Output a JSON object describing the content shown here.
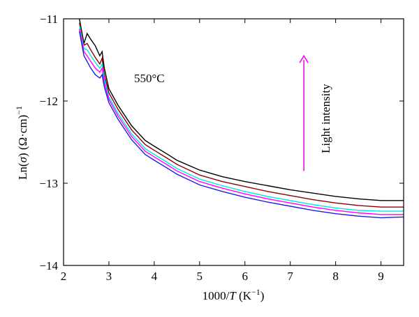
{
  "chart_data": {
    "type": "line",
    "xlabel_parts": {
      "pre": "1000/",
      "var": "T",
      "mid": " (K",
      "sup": "−1",
      "post": ")"
    },
    "ylabel_parts": {
      "pre": "Ln(",
      "var": "σ",
      "mid": ") (Ω·cm)",
      "sup": "−1"
    },
    "xlim": [
      2,
      9.5
    ],
    "ylim": [
      -14,
      -11
    ],
    "xticks": [
      2,
      3,
      4,
      5,
      6,
      7,
      8,
      9
    ],
    "yticks": [
      -11,
      -12,
      -13,
      -14
    ],
    "xtick_labels": [
      "2",
      "3",
      "4",
      "5",
      "6",
      "7",
      "8",
      "9"
    ],
    "ytick_labels": [
      "−11",
      "−12",
      "−13",
      "−14"
    ],
    "annotations": {
      "temperature": "550°C",
      "arrow_label": "Light intensity"
    },
    "arrow": {
      "x": 7.3,
      "y_from": -12.85,
      "y_to": -11.45,
      "color": "#ff00ff"
    },
    "series": [
      {
        "color": "#000000",
        "points": [
          [
            2.35,
            -11.0
          ],
          [
            2.45,
            -11.3
          ],
          [
            2.52,
            -11.18
          ],
          [
            2.6,
            -11.25
          ],
          [
            2.7,
            -11.33
          ],
          [
            2.8,
            -11.45
          ],
          [
            2.85,
            -11.4
          ],
          [
            2.9,
            -11.6
          ],
          [
            3.0,
            -11.85
          ],
          [
            3.2,
            -12.05
          ],
          [
            3.5,
            -12.3
          ],
          [
            3.8,
            -12.48
          ],
          [
            4.0,
            -12.55
          ],
          [
            4.3,
            -12.65
          ],
          [
            4.5,
            -12.72
          ],
          [
            5.0,
            -12.84
          ],
          [
            5.5,
            -12.92
          ],
          [
            6.0,
            -12.98
          ],
          [
            6.5,
            -13.03
          ],
          [
            7.0,
            -13.08
          ],
          [
            7.5,
            -13.12
          ],
          [
            8.0,
            -13.16
          ],
          [
            8.5,
            -13.19
          ],
          [
            9.0,
            -13.21
          ],
          [
            9.5,
            -13.21
          ]
        ]
      },
      {
        "color": "#8b0000",
        "points": [
          [
            2.35,
            -11.05
          ],
          [
            2.45,
            -11.32
          ],
          [
            2.52,
            -11.3
          ],
          [
            2.6,
            -11.38
          ],
          [
            2.7,
            -11.47
          ],
          [
            2.8,
            -11.55
          ],
          [
            2.85,
            -11.48
          ],
          [
            2.9,
            -11.68
          ],
          [
            3.0,
            -11.9
          ],
          [
            3.2,
            -12.1
          ],
          [
            3.5,
            -12.35
          ],
          [
            3.8,
            -12.53
          ],
          [
            4.0,
            -12.6
          ],
          [
            4.3,
            -12.7
          ],
          [
            4.5,
            -12.77
          ],
          [
            5.0,
            -12.9
          ],
          [
            5.5,
            -12.98
          ],
          [
            6.0,
            -13.04
          ],
          [
            6.5,
            -13.1
          ],
          [
            7.0,
            -13.15
          ],
          [
            7.5,
            -13.2
          ],
          [
            8.0,
            -13.24
          ],
          [
            8.5,
            -13.27
          ],
          [
            9.0,
            -13.29
          ],
          [
            9.5,
            -13.29
          ]
        ]
      },
      {
        "color": "#00e5e5",
        "points": [
          [
            2.35,
            -11.08
          ],
          [
            2.45,
            -11.36
          ],
          [
            2.52,
            -11.38
          ],
          [
            2.6,
            -11.45
          ],
          [
            2.7,
            -11.53
          ],
          [
            2.8,
            -11.6
          ],
          [
            2.85,
            -11.55
          ],
          [
            2.9,
            -11.73
          ],
          [
            3.0,
            -11.95
          ],
          [
            3.2,
            -12.15
          ],
          [
            3.5,
            -12.4
          ],
          [
            3.8,
            -12.58
          ],
          [
            4.0,
            -12.65
          ],
          [
            4.3,
            -12.75
          ],
          [
            4.5,
            -12.82
          ],
          [
            5.0,
            -12.95
          ],
          [
            5.5,
            -13.03
          ],
          [
            6.0,
            -13.1
          ],
          [
            6.5,
            -13.16
          ],
          [
            7.0,
            -13.21
          ],
          [
            7.5,
            -13.26
          ],
          [
            8.0,
            -13.3
          ],
          [
            8.5,
            -13.33
          ],
          [
            9.0,
            -13.34
          ],
          [
            9.5,
            -13.34
          ]
        ]
      },
      {
        "color": "#ff00ff",
        "points": [
          [
            2.35,
            -11.12
          ],
          [
            2.45,
            -11.4
          ],
          [
            2.52,
            -11.45
          ],
          [
            2.6,
            -11.52
          ],
          [
            2.7,
            -11.6
          ],
          [
            2.8,
            -11.65
          ],
          [
            2.85,
            -11.6
          ],
          [
            2.9,
            -11.78
          ],
          [
            3.0,
            -11.98
          ],
          [
            3.2,
            -12.18
          ],
          [
            3.5,
            -12.43
          ],
          [
            3.8,
            -12.61
          ],
          [
            4.0,
            -12.68
          ],
          [
            4.3,
            -12.78
          ],
          [
            4.5,
            -12.85
          ],
          [
            5.0,
            -12.98
          ],
          [
            5.5,
            -13.06
          ],
          [
            6.0,
            -13.13
          ],
          [
            6.5,
            -13.19
          ],
          [
            7.0,
            -13.24
          ],
          [
            7.5,
            -13.29
          ],
          [
            8.0,
            -13.33
          ],
          [
            8.5,
            -13.36
          ],
          [
            9.0,
            -13.38
          ],
          [
            9.5,
            -13.38
          ]
        ]
      },
      {
        "color": "#1f1fdf",
        "points": [
          [
            2.35,
            -11.15
          ],
          [
            2.45,
            -11.45
          ],
          [
            2.52,
            -11.52
          ],
          [
            2.6,
            -11.6
          ],
          [
            2.7,
            -11.68
          ],
          [
            2.8,
            -11.72
          ],
          [
            2.85,
            -11.68
          ],
          [
            2.9,
            -11.83
          ],
          [
            3.0,
            -12.02
          ],
          [
            3.2,
            -12.22
          ],
          [
            3.5,
            -12.47
          ],
          [
            3.8,
            -12.65
          ],
          [
            4.0,
            -12.72
          ],
          [
            4.3,
            -12.82
          ],
          [
            4.5,
            -12.89
          ],
          [
            5.0,
            -13.02
          ],
          [
            5.5,
            -13.1
          ],
          [
            6.0,
            -13.17
          ],
          [
            6.5,
            -13.23
          ],
          [
            7.0,
            -13.28
          ],
          [
            7.5,
            -13.33
          ],
          [
            8.0,
            -13.37
          ],
          [
            8.5,
            -13.4
          ],
          [
            9.0,
            -13.42
          ],
          [
            9.5,
            -13.41
          ]
        ]
      }
    ]
  }
}
